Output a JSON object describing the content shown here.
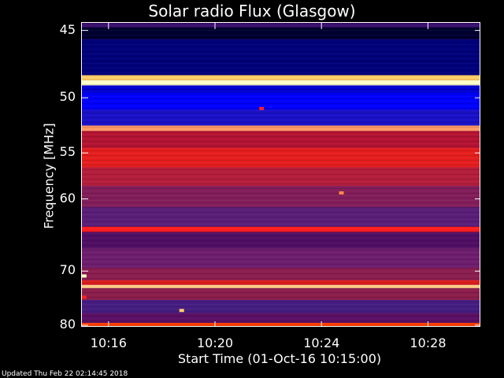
{
  "chart_data": {
    "type": "heatmap",
    "title": "Solar radio Flux (Glasgow)",
    "xlabel": "Start Time (01-Oct-16 10:15:00)",
    "ylabel": "Frequency [MHz]",
    "x_tick_labels": [
      "10:16",
      "10:20",
      "10:24",
      "10:28"
    ],
    "y_tick_labels": [
      "45",
      "50",
      "55",
      "60",
      "70",
      "80"
    ],
    "ylim": [
      44.5,
      80.5
    ],
    "ticks_y": [
      45,
      50,
      55,
      60,
      70,
      80
    ],
    "y_scale": "reciprocal",
    "xlim": [
      "10:15:00",
      "10:30:00"
    ],
    "ticks_x": [
      "10:16:00",
      "10:20:00",
      "10:24:00",
      "10:28:00"
    ],
    "bands": [
      {
        "from": 44.8,
        "to": 45.6,
        "color": "#000030"
      },
      {
        "from": 45.6,
        "to": 48.2,
        "color": "#00007a"
      },
      {
        "from": 48.2,
        "to": 48.6,
        "color": "#ffcc66"
      },
      {
        "from": 48.6,
        "to": 49.0,
        "color": "#ffffc8"
      },
      {
        "from": 49.0,
        "to": 49.6,
        "color": "#0000d0"
      },
      {
        "from": 49.6,
        "to": 51.0,
        "color": "#0000ff"
      },
      {
        "from": 51.0,
        "to": 52.4,
        "color": "#1a10c8"
      },
      {
        "from": 52.4,
        "to": 52.9,
        "color": "#ff9966"
      },
      {
        "from": 52.9,
        "to": 54.5,
        "color": "#b41432"
      },
      {
        "from": 54.5,
        "to": 56.5,
        "color": "#e61e1e"
      },
      {
        "from": 56.5,
        "to": 58.5,
        "color": "#b41e3c"
      },
      {
        "from": 58.5,
        "to": 61.0,
        "color": "#821e5a"
      },
      {
        "from": 61.0,
        "to": 63.5,
        "color": "#5a1e78"
      },
      {
        "from": 63.5,
        "to": 64.2,
        "color": "#ff1e1e"
      },
      {
        "from": 64.2,
        "to": 66.5,
        "color": "#500f64"
      },
      {
        "from": 66.5,
        "to": 69.5,
        "color": "#6e1e6e"
      },
      {
        "from": 69.5,
        "to": 71.5,
        "color": "#8c1e50"
      },
      {
        "from": 71.5,
        "to": 72.3,
        "color": "#dc1e1e"
      },
      {
        "from": 72.3,
        "to": 72.9,
        "color": "#ffcc88"
      },
      {
        "from": 72.9,
        "to": 75.0,
        "color": "#8c1e4b"
      },
      {
        "from": 75.0,
        "to": 77.5,
        "color": "#461e82"
      },
      {
        "from": 77.5,
        "to": 79.5,
        "color": "#5a0f64"
      },
      {
        "from": 79.5,
        "to": 80.5,
        "color": "#ff3c00"
      }
    ],
    "spots": [
      {
        "time": "10:21:45",
        "freq": 50.9,
        "color": "#ff2020"
      },
      {
        "time": "10:24:45",
        "freq": 59.3,
        "color": "#ff8844"
      },
      {
        "time": "10:15:05",
        "freq": 70.8,
        "color": "#ffffc8"
      },
      {
        "time": "10:15:05",
        "freq": 74.5,
        "color": "#ff2020"
      },
      {
        "time": "10:18:45",
        "freq": 77.0,
        "color": "#ffcc66"
      }
    ]
  },
  "footer": "Updated Thu Feb 22 02:14:45 2018"
}
